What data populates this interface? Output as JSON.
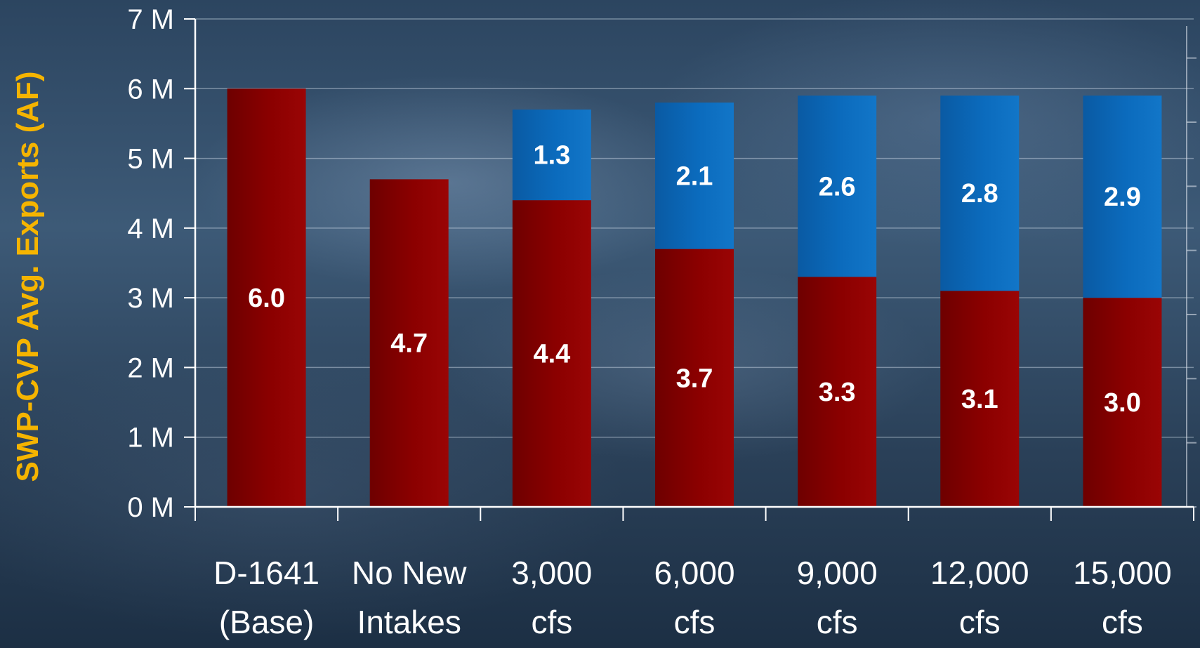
{
  "chart_data": {
    "type": "bar",
    "stacked": true,
    "ylabel": "SWP-CVP Avg. Exports (AF)",
    "xlabel": "",
    "ylim": [
      0,
      7
    ],
    "yticks": [
      {
        "value": 0,
        "label": "0 M"
      },
      {
        "value": 1,
        "label": "1 M"
      },
      {
        "value": 2,
        "label": "2 M"
      },
      {
        "value": 3,
        "label": "3 M"
      },
      {
        "value": 4,
        "label": "4 M"
      },
      {
        "value": 5,
        "label": "5 M"
      },
      {
        "value": 6,
        "label": "6 M"
      },
      {
        "value": 7,
        "label": "7 M"
      }
    ],
    "categories": [
      [
        "D-1641",
        "(Base)"
      ],
      [
        "No New",
        "Intakes"
      ],
      [
        "3,000",
        "cfs"
      ],
      [
        "6,000",
        "cfs"
      ],
      [
        "9,000",
        "cfs"
      ],
      [
        "12,000",
        "cfs"
      ],
      [
        "15,000",
        "cfs"
      ]
    ],
    "series": [
      {
        "color": "#8b0000",
        "values": [
          6.0,
          4.7,
          4.4,
          3.7,
          3.3,
          3.1,
          3.0
        ],
        "labels": [
          "6.0",
          "4.7",
          "4.4",
          "3.7",
          "3.3",
          "3.1",
          "3.0"
        ]
      },
      {
        "color": "#0b6bbd",
        "values": [
          0,
          0,
          1.3,
          2.1,
          2.6,
          2.8,
          2.9
        ],
        "labels": [
          "",
          "",
          "1.3",
          "2.1",
          "2.6",
          "2.8",
          "2.9"
        ]
      }
    ],
    "grid": true,
    "legend": "none"
  }
}
